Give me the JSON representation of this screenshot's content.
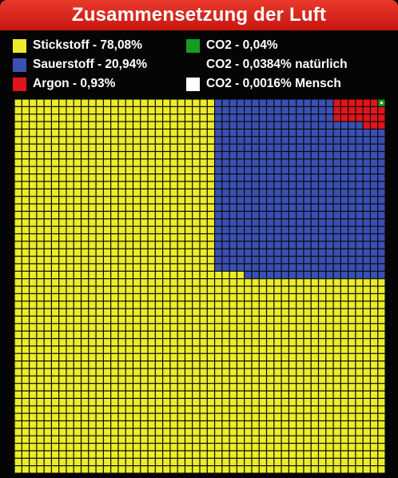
{
  "chart_data": {
    "type": "waffle",
    "title": "Zusammensetzung der Luft",
    "legend": [
      {
        "label": "Stickstoff - 78,08%",
        "color": "#ecec2a",
        "value": 78.08
      },
      {
        "label": "Sauerstoff - 20,94%",
        "color": "#3a50b4",
        "value": 20.94
      },
      {
        "label": "Argon - 0,93%",
        "color": "#e0141a",
        "value": 0.93
      },
      {
        "label": "CO2 - 0,04%",
        "color": "#169c1e",
        "value": 0.04
      },
      {
        "label": "CO2 - 0,0384% natürlich",
        "color": null,
        "value": 0.0384
      },
      {
        "label": "CO2 - 0,0016% Mensch",
        "color": "#ffffff",
        "value": 0.0016
      }
    ],
    "grid": {
      "rows": 50,
      "cols": 50,
      "grid_color": "#111111"
    }
  }
}
